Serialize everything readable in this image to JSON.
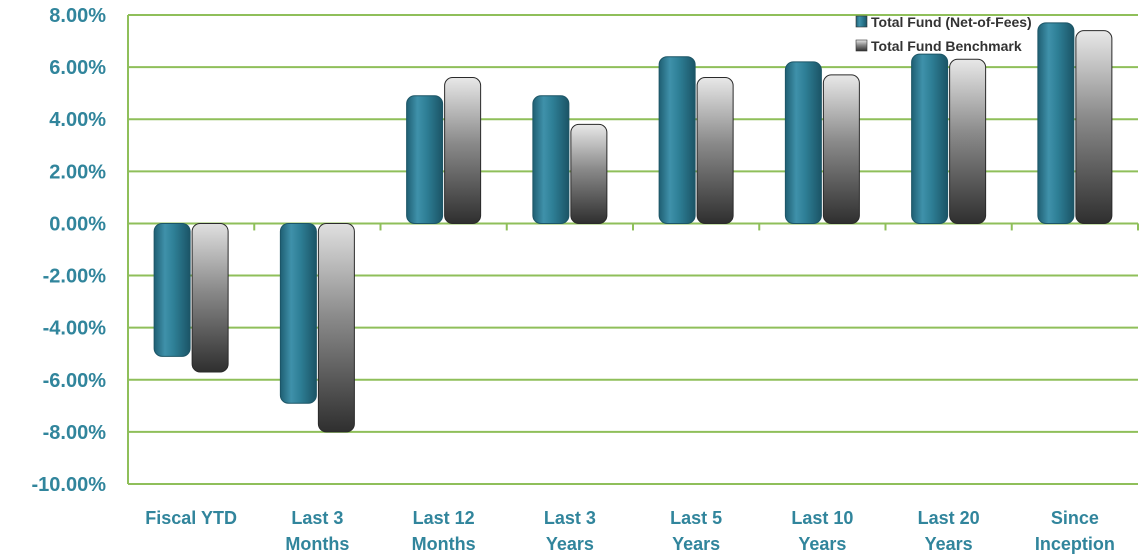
{
  "chart_data": {
    "type": "bar",
    "categories": [
      [
        "Fiscal YTD"
      ],
      [
        "Last 3",
        "Months"
      ],
      [
        "Last 12",
        "Months"
      ],
      [
        "Last 3",
        "Years"
      ],
      [
        "Last 5",
        "Years"
      ],
      [
        "Last 10",
        "Years"
      ],
      [
        "Last 20",
        "Years"
      ],
      [
        "Since",
        "Inception"
      ]
    ],
    "series": [
      {
        "name": "Total Fund (Net-of-Fees)",
        "values": [
          -5.1,
          -6.9,
          4.9,
          4.9,
          6.4,
          6.2,
          6.5,
          7.7
        ],
        "color": "#31849b"
      },
      {
        "name": "Total Fund Benchmark",
        "values": [
          -5.7,
          -8.0,
          5.6,
          3.8,
          5.6,
          5.7,
          6.3,
          7.4
        ],
        "color": "#595959"
      }
    ],
    "ylim": [
      -10,
      8
    ],
    "yticks": [
      8,
      6,
      4,
      2,
      0,
      -2,
      -4,
      -6,
      -8,
      -10
    ],
    "ytick_labels": [
      "8.00%",
      "6.00%",
      "4.00%",
      "2.00%",
      "0.00%",
      "-2.00%",
      "-4.00%",
      "-6.00%",
      "-8.00%",
      "-10.00%"
    ],
    "grid": true,
    "legend": "top-right",
    "gridline_color": "#8fbf5a",
    "tick_label_color": "#31859c"
  }
}
